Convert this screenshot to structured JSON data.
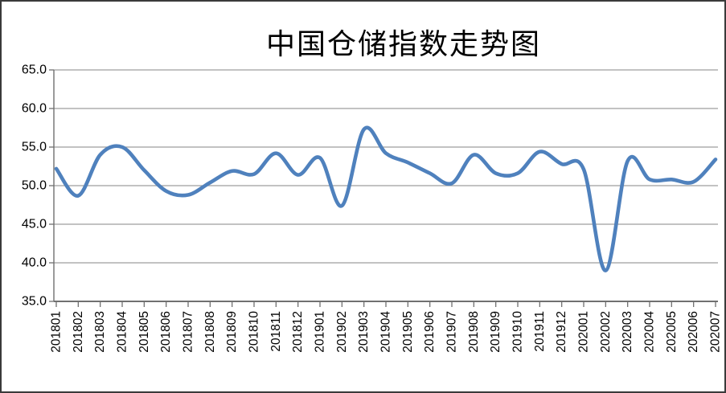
{
  "title": "中国仓储指数走势图",
  "colors": {
    "line": "#4F81BD",
    "gridline": "#9e9e9e",
    "axis": "#707070",
    "text": "#000000",
    "border": "#3a3a3a",
    "background": "#ffffff"
  },
  "chart_data": {
    "type": "line",
    "title": "中国仓储指数走势图",
    "categories": [
      "201801",
      "201802",
      "201803",
      "201804",
      "201805",
      "201806",
      "201807",
      "201808",
      "201809",
      "201810",
      "201811",
      "201812",
      "201901",
      "201902",
      "201903",
      "201904",
      "201905",
      "201906",
      "201907",
      "201908",
      "201909",
      "201910",
      "201911",
      "201912",
      "202001",
      "202002",
      "202003",
      "202004",
      "202005",
      "202006",
      "202007"
    ],
    "values": [
      52.2,
      48.7,
      54.0,
      55.0,
      52.0,
      49.3,
      48.8,
      50.4,
      51.9,
      51.5,
      54.2,
      51.4,
      53.6,
      47.4,
      57.3,
      54.2,
      53.0,
      51.6,
      50.3,
      54.0,
      51.6,
      51.6,
      54.4,
      52.8,
      52.1,
      39.0,
      53.2,
      50.8,
      50.8,
      50.5,
      53.4
    ],
    "ylim": [
      35.0,
      65.0
    ],
    "ytick_step": 5.0,
    "ytick_labels": [
      "35.0",
      "40.0",
      "45.0",
      "50.0",
      "55.0",
      "60.0",
      "65.0"
    ],
    "xlabel": "",
    "ylabel": "",
    "grid": "horizontal",
    "legend": "none",
    "smooth_line": true
  }
}
